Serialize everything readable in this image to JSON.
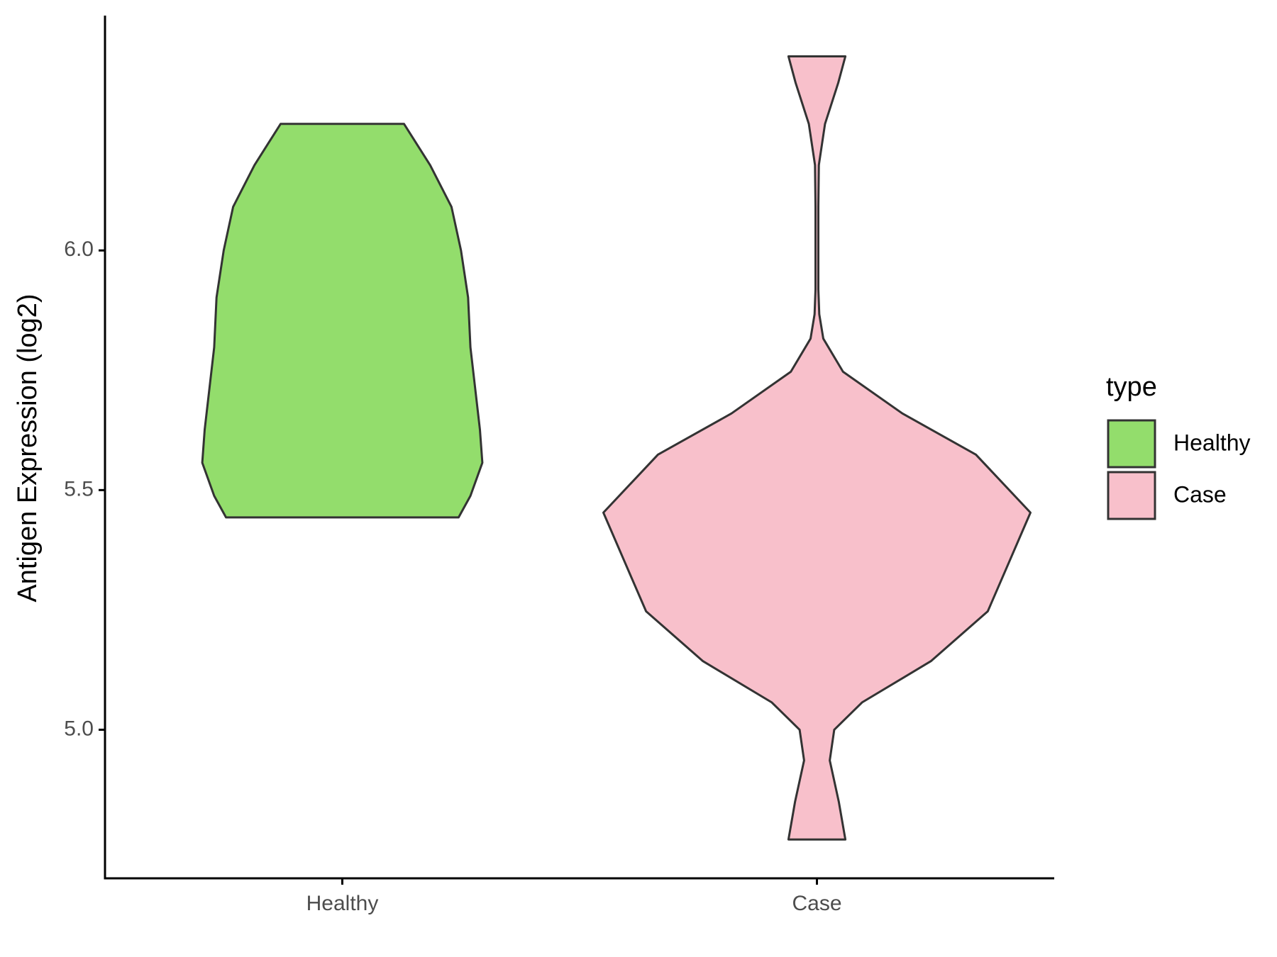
{
  "chart_data": {
    "type": "violin",
    "y_label": "Antigen Expression (log2)",
    "categories": [
      "Healthy",
      "Case"
    ],
    "legend_title": "type",
    "legend": "right",
    "series": [
      {
        "name": "Healthy",
        "color": "#93dd6c",
        "y": [
          6.264,
          6.178,
          6.091,
          6.0,
          5.902,
          5.798,
          5.712,
          5.626,
          5.557,
          5.488,
          5.443
        ],
        "widths": [
          0.26,
          0.37,
          0.46,
          0.5,
          0.53,
          0.54,
          0.56,
          0.58,
          0.59,
          0.54,
          0.49
        ]
      },
      {
        "name": "Case",
        "color": "#f8c0cb",
        "y": [
          6.405,
          6.35,
          6.264,
          6.178,
          6.091,
          6.005,
          5.919,
          5.867,
          5.816,
          5.747,
          5.66,
          5.574,
          5.453,
          5.35,
          5.247,
          5.143,
          5.057,
          5.0,
          4.936,
          4.85,
          4.771
        ],
        "widths": [
          0.12,
          0.09,
          0.034,
          0.008,
          0.006,
          0.006,
          0.006,
          0.01,
          0.027,
          0.11,
          0.36,
          0.67,
          0.9,
          0.81,
          0.72,
          0.48,
          0.19,
          0.073,
          0.054,
          0.092,
          0.12
        ]
      }
    ],
    "ylim": [
      4.69,
      6.49
    ],
    "yticks": [
      {
        "value": 5,
        "label": "5.0"
      },
      5.5,
      {
        "value": 6,
        "label": "6.0"
      }
    ],
    "grid": false
  }
}
